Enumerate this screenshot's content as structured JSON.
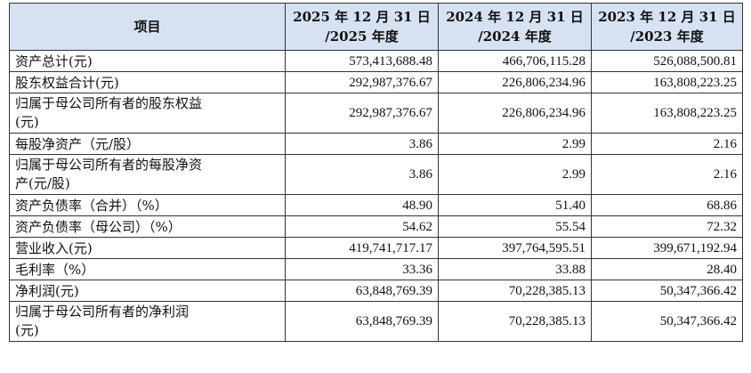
{
  "table": {
    "header": {
      "item": "项目",
      "col_2025_line1": "2025 年 12 月 31 日",
      "col_2025_line2": "/2025 年度",
      "col_2024_line1": "2024 年 12 月 31 日",
      "col_2024_line2": "/2024 年度",
      "col_2023_line1": "2023 年 12 月 31 日",
      "col_2023_line2": "/2023 年度"
    },
    "rows": [
      {
        "label": "资产总计(元)",
        "y2025": "573,413,688.48",
        "y2024": "466,706,115.28",
        "y2023": "526,088,500.81"
      },
      {
        "label": "股东权益合计(元)",
        "y2025": "292,987,376.67",
        "y2024": "226,806,234.96",
        "y2023": "163,808,223.25"
      },
      {
        "label_line1": "归属于母公司所有者的股东权益",
        "label_line2": "(元)",
        "y2025": "292,987,376.67",
        "y2024": "226,806,234.96",
        "y2023": "163,808,223.25"
      },
      {
        "label": "每股净资产（元/股）",
        "y2025": "3.86",
        "y2024": "2.99",
        "y2023": "2.16"
      },
      {
        "label_line1": "归属于母公司所有者的每股净资",
        "label_line2": "产(元/股)",
        "y2025": "3.86",
        "y2024": "2.99",
        "y2023": "2.16"
      },
      {
        "label": "资产负债率（合并）（%）",
        "y2025": "48.90",
        "y2024": "51.40",
        "y2023": "68.86"
      },
      {
        "label": "资产负债率（母公司）（%）",
        "y2025": "54.62",
        "y2024": "55.54",
        "y2023": "72.32"
      },
      {
        "label": "营业收入(元)",
        "y2025": "419,741,717.17",
        "y2024": "397,764,595.51",
        "y2023": "399,671,192.94"
      },
      {
        "label": "毛利率（%）",
        "y2025": "33.36",
        "y2024": "33.88",
        "y2023": "28.40"
      },
      {
        "label": "净利润(元)",
        "y2025": "63,848,769.39",
        "y2024": "70,228,385.13",
        "y2023": "50,347,366.42"
      },
      {
        "label_line1": "归属于母公司所有者的净利润",
        "label_line2": "(元)",
        "y2025": "63,848,769.39",
        "y2024": "70,228,385.13",
        "y2023": "50,347,366.42"
      }
    ]
  },
  "colors": {
    "header_bg": "#d6e2f1",
    "border": "#333333",
    "text": "#111111"
  }
}
